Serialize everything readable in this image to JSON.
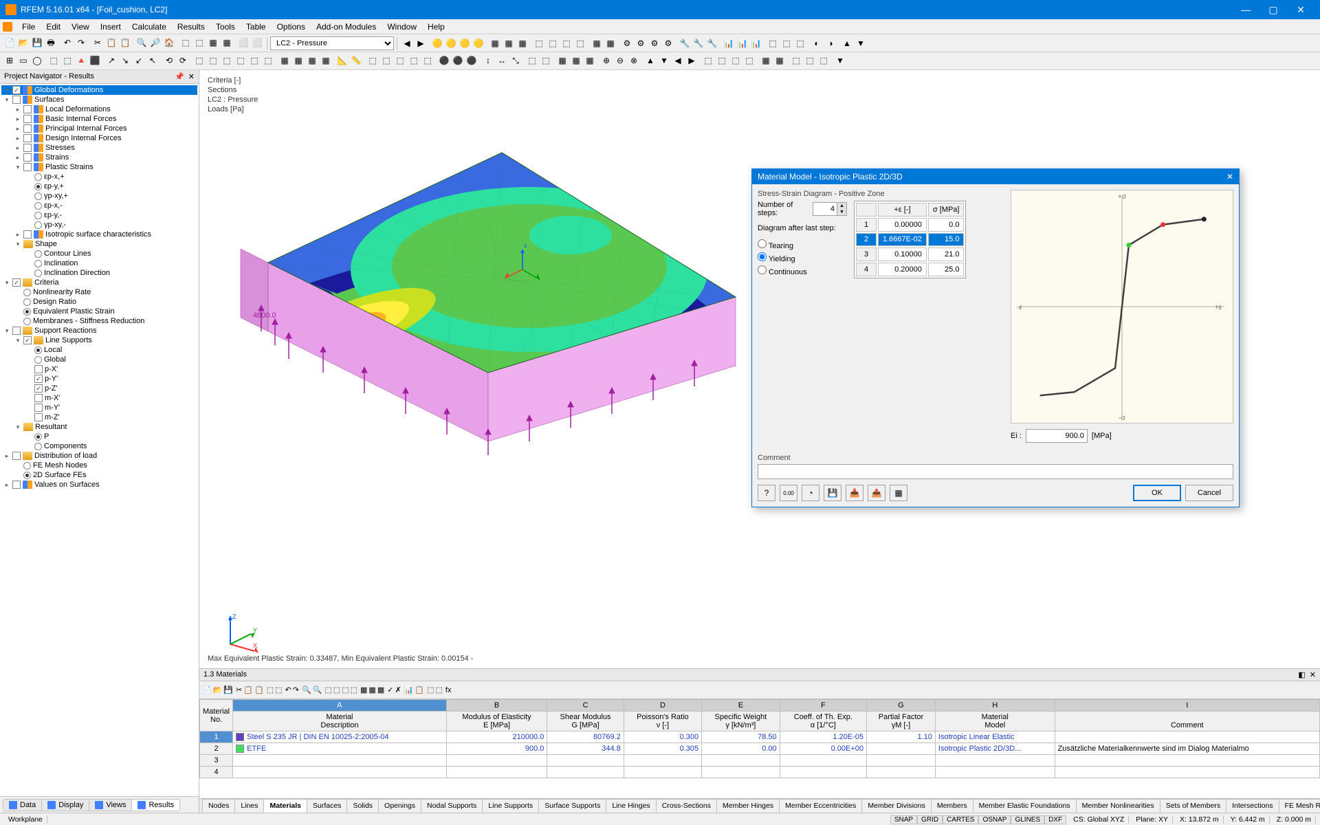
{
  "title": "RFEM 5.16.01 x64 - [Foil_cushion, LC2]",
  "menus": [
    "File",
    "Edit",
    "View",
    "Insert",
    "Calculate",
    "Results",
    "Tools",
    "Table",
    "Options",
    "Add-on Modules",
    "Window",
    "Help"
  ],
  "lc_combo": "LC2 - Pressure",
  "navigator": {
    "title": "Project Navigator - Results",
    "items": [
      {
        "lvl": 0,
        "exp": "-",
        "chk": true,
        "ico": "layer",
        "lbl": "Global Deformations",
        "sel": true
      },
      {
        "lvl": 0,
        "exp": "-",
        "chk": false,
        "ico": "layer",
        "lbl": "Surfaces"
      },
      {
        "lvl": 1,
        "exp": "+",
        "chk": false,
        "ico": "layer",
        "lbl": "Local Deformations"
      },
      {
        "lvl": 1,
        "exp": "+",
        "chk": false,
        "ico": "layer",
        "lbl": "Basic Internal Forces"
      },
      {
        "lvl": 1,
        "exp": "+",
        "chk": false,
        "ico": "layer",
        "lbl": "Principal Internal Forces"
      },
      {
        "lvl": 1,
        "exp": "+",
        "chk": false,
        "ico": "layer",
        "lbl": "Design Internal Forces"
      },
      {
        "lvl": 1,
        "exp": "+",
        "chk": false,
        "ico": "layer",
        "lbl": "Stresses"
      },
      {
        "lvl": 1,
        "exp": "+",
        "chk": false,
        "ico": "layer",
        "lbl": "Strains"
      },
      {
        "lvl": 1,
        "exp": "-",
        "chk": false,
        "ico": "layer",
        "lbl": "Plastic Strains"
      },
      {
        "lvl": 2,
        "radio": false,
        "lbl": "εp-x,+"
      },
      {
        "lvl": 2,
        "radio": true,
        "lbl": "εp-y,+"
      },
      {
        "lvl": 2,
        "radio": false,
        "lbl": "γp-xy,+"
      },
      {
        "lvl": 2,
        "radio": false,
        "lbl": "εp-x,-"
      },
      {
        "lvl": 2,
        "radio": false,
        "lbl": "εp-y,-"
      },
      {
        "lvl": 2,
        "radio": false,
        "lbl": "γp-xy,-"
      },
      {
        "lvl": 1,
        "exp": "+",
        "chk": false,
        "ico": "layer",
        "lbl": "Isotropic surface characteristics"
      },
      {
        "lvl": 1,
        "exp": "-",
        "ico": "folder",
        "lbl": "Shape",
        "noChk": true
      },
      {
        "lvl": 2,
        "radio": false,
        "lbl": "Contour Lines"
      },
      {
        "lvl": 2,
        "radio": false,
        "lbl": "Inclination"
      },
      {
        "lvl": 2,
        "radio": false,
        "lbl": "Inclination Direction"
      },
      {
        "lvl": 0,
        "exp": "-",
        "chk": true,
        "ico": "folder",
        "lbl": "Criteria"
      },
      {
        "lvl": 1,
        "radio": false,
        "lbl": "Nonlinearity Rate"
      },
      {
        "lvl": 1,
        "radio": false,
        "lbl": "Design Ratio"
      },
      {
        "lvl": 1,
        "radio": true,
        "lbl": "Equivalent Plastic Strain"
      },
      {
        "lvl": 1,
        "radio": false,
        "lbl": "Membranes - Stiffness Reduction"
      },
      {
        "lvl": 0,
        "exp": "-",
        "chk": false,
        "ico": "folder",
        "lbl": "Support Reactions"
      },
      {
        "lvl": 1,
        "exp": "-",
        "chk": true,
        "ico": "folder",
        "lbl": "Line Supports"
      },
      {
        "lvl": 2,
        "radio": true,
        "lbl": "Local"
      },
      {
        "lvl": 2,
        "radio": false,
        "lbl": "Global"
      },
      {
        "lvl": 2,
        "chk": false,
        "lbl": "p-X'"
      },
      {
        "lvl": 2,
        "chk": true,
        "lbl": "p-Y'"
      },
      {
        "lvl": 2,
        "chk": true,
        "lbl": "p-Z'"
      },
      {
        "lvl": 2,
        "chk": false,
        "lbl": "m-X'"
      },
      {
        "lvl": 2,
        "chk": false,
        "lbl": "m-Y'"
      },
      {
        "lvl": 2,
        "chk": false,
        "lbl": "m-Z'"
      },
      {
        "lvl": 1,
        "exp": "-",
        "ico": "folder",
        "lbl": "Resultant",
        "noChk": true
      },
      {
        "lvl": 2,
        "radio": true,
        "lbl": "P"
      },
      {
        "lvl": 2,
        "radio": false,
        "lbl": "Components"
      },
      {
        "lvl": 0,
        "exp": "+",
        "chk": false,
        "ico": "folder",
        "lbl": "Distribution of load"
      },
      {
        "lvl": 1,
        "radio": false,
        "lbl": "FE Mesh Nodes"
      },
      {
        "lvl": 1,
        "radio": true,
        "lbl": "2D Surface FEs"
      },
      {
        "lvl": 0,
        "exp": "+",
        "chk": false,
        "ico": "layer",
        "lbl": "Values on Surfaces"
      }
    ]
  },
  "viewport": {
    "info": [
      "Criteria [-]",
      "Sections",
      "LC2 : Pressure",
      "Loads [Pa]"
    ],
    "status": "Max Equivalent Plastic Strain: 0.33487, Min Equivalent Plastic Strain: 0.00154 -",
    "annot_value": "4800.0",
    "contour_colors": [
      "#1a1a9c",
      "#3a6ae0",
      "#30d4f0",
      "#2de0a0",
      "#5ac850",
      "#c8e020",
      "#fff040",
      "#ffb020",
      "#ff5020",
      "#e01010"
    ],
    "side_color": "#e8a0e8",
    "arrow_color": "#a020a0"
  },
  "dialog": {
    "title": "Material Model - Isotropic Plastic 2D/3D",
    "group": "Stress-Strain Diagram - Positive Zone",
    "steps_label": "Number of steps:",
    "steps_value": "4",
    "after_label": "Diagram after last step:",
    "radios": [
      {
        "lbl": "Tearing",
        "on": false
      },
      {
        "lbl": "Yielding",
        "on": true
      },
      {
        "lbl": "Continuous",
        "on": false
      }
    ],
    "table": {
      "headers": [
        "",
        "+ε [-]",
        "σ [MPa]"
      ],
      "rows": [
        {
          "n": "1",
          "e": "0.00000",
          "s": "0.0"
        },
        {
          "n": "2",
          "e": "1.6667E-02",
          "s": "15.0",
          "sel": true
        },
        {
          "n": "3",
          "e": "0.10000",
          "s": "21.0"
        },
        {
          "n": "4",
          "e": "0.20000",
          "s": "25.0"
        }
      ]
    },
    "chart": {
      "axis_labels": {
        "top": "+σ",
        "bottom": "-σ",
        "left": "-ε",
        "right": "+ε"
      },
      "point_colors": {
        "red": "#ff3030",
        "green": "#30d030",
        "black": "#202020"
      },
      "line_color": "#404040"
    },
    "ei_label": "Ei :",
    "ei_value": "900.0",
    "ei_unit": "[MPa]",
    "comment_label": "Comment",
    "ok": "OK",
    "cancel": "Cancel"
  },
  "materials_panel": {
    "title": "1.3 Materials",
    "col_letters": [
      "A",
      "B",
      "C",
      "D",
      "E",
      "F",
      "G",
      "H",
      "I"
    ],
    "headers": [
      {
        "t": "Material",
        "s": "No."
      },
      {
        "t": "Material",
        "s": "Description"
      },
      {
        "t": "Modulus of Elasticity",
        "s": "E [MPa]"
      },
      {
        "t": "Shear Modulus",
        "s": "G [MPa]"
      },
      {
        "t": "Poisson's Ratio",
        "s": "ν [-]"
      },
      {
        "t": "Specific Weight",
        "s": "γ [kN/m³]"
      },
      {
        "t": "Coeff. of Th. Exp.",
        "s": "α [1/°C]"
      },
      {
        "t": "Partial Factor",
        "s": "γM [-]"
      },
      {
        "t": "Material",
        "s": "Model"
      },
      {
        "t": "",
        "s": "Comment"
      }
    ],
    "rows": [
      {
        "n": "1",
        "swatch": "#6040c0",
        "desc": "Steel S 235 JR | DIN EN 10025-2:2005-04",
        "E": "210000.0",
        "G": "80769.2",
        "nu": "0.300",
        "gamma": "78.50",
        "alpha": "1.20E-05",
        "gm": "1.10",
        "model": "Isotropic Linear Elastic",
        "comment": "",
        "active": true
      },
      {
        "n": "2",
        "swatch": "#40e060",
        "desc": "ETFE",
        "E": "900.0",
        "G": "344.8",
        "nu": "0.305",
        "gamma": "0.00",
        "alpha": "0.00E+00",
        "gm": "",
        "model": "Isotropic Plastic 2D/3D...",
        "comment": "Zusätzliche Materialkennwerte sind im Dialog Materialmo"
      }
    ],
    "empty_rows": [
      "3",
      "4"
    ],
    "tabs": [
      "Nodes",
      "Lines",
      "Materials",
      "Surfaces",
      "Solids",
      "Openings",
      "Nodal Supports",
      "Line Supports",
      "Surface Supports",
      "Line Hinges",
      "Cross-Sections",
      "Member Hinges",
      "Member Eccentricities",
      "Member Divisions",
      "Members",
      "Member Elastic Foundations",
      "Member Nonlinearities",
      "Sets of Members",
      "Intersections",
      "FE Mesh Refinements"
    ],
    "active_tab": "Materials"
  },
  "view_tabs": [
    "Data",
    "Display",
    "Views",
    "Results"
  ],
  "view_tabs_active": "Results",
  "statusbar": {
    "left": "Workplane",
    "toggles": [
      "SNAP",
      "GRID",
      "CARTES",
      "OSNAP",
      "GLINES",
      "DXF"
    ],
    "cs": "CS: Global XYZ",
    "plane": "Plane: XY",
    "x": "X: 13.872 m",
    "y": "Y: 6.442 m",
    "z": "Z: 0.000 m"
  }
}
